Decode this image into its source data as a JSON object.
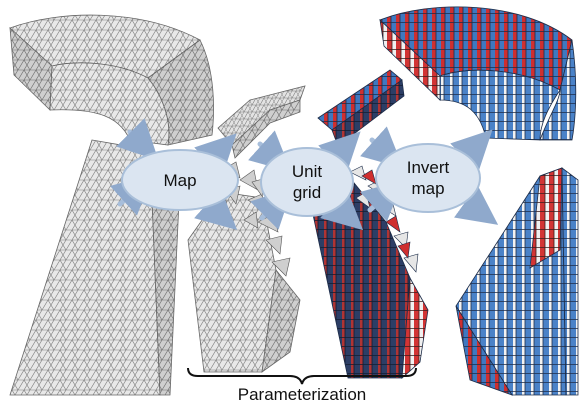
{
  "bubbles": {
    "map": "Map",
    "unit_grid_line1": "Unit",
    "unit_grid_line2": "grid",
    "invert_map_line1": "Invert",
    "invert_map_line2": "map"
  },
  "caption": "Parameterization",
  "colors": {
    "mesh_fill": "#e6e6e6",
    "mesh_line": "#7a7a7a",
    "bubble_fill": "#dbe5f1",
    "bubble_stroke": "#a9bfd9",
    "arrow": "#a7bedb",
    "frame_red": "#cf2f2f",
    "frame_blue": "#3f78c0",
    "frame_white": "#f2f2f2"
  }
}
